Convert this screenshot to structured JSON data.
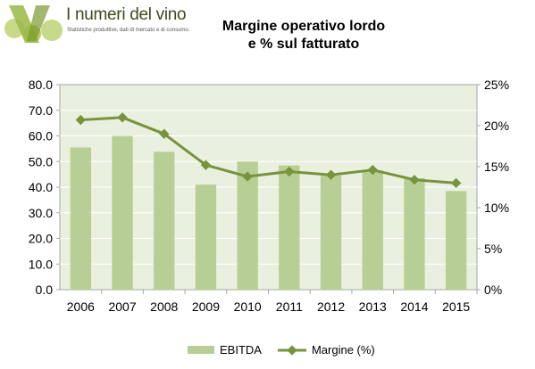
{
  "logo": {
    "title": "I numeri del vino",
    "subtitle": "Statistiche produttive, dati di mercato e di consumo."
  },
  "colors": {
    "plot_bg": "#eaf0df",
    "bar": "#b7cf94",
    "line": "#77933c",
    "grid": "#a6a6a6"
  },
  "chart_data": {
    "type": "bar",
    "title_line1": "Margine operativo lordo",
    "title_line2": "e % sul fatturato",
    "categories": [
      "2006",
      "2007",
      "2008",
      "2009",
      "2010",
      "2011",
      "2012",
      "2013",
      "2014",
      "2015"
    ],
    "series": [
      {
        "name": "EBITDA",
        "type": "bar",
        "axis": "left",
        "values": [
          55.5,
          60.0,
          53.8,
          41.0,
          50.0,
          48.5,
          44.5,
          46.5,
          43.5,
          38.5
        ]
      },
      {
        "name": "Margine (%)",
        "type": "line",
        "axis": "right",
        "values": [
          20.7,
          21.0,
          19.0,
          15.2,
          13.8,
          14.4,
          14.0,
          14.6,
          13.4,
          13.0
        ]
      }
    ],
    "y_left": {
      "min": 0,
      "max": 80,
      "step": 10,
      "ticks": [
        "0.0",
        "10.0",
        "20.0",
        "30.0",
        "40.0",
        "50.0",
        "60.0",
        "70.0",
        "80.0"
      ]
    },
    "y_right": {
      "min": 0,
      "max": 25,
      "step": 5,
      "ticks": [
        "0%",
        "5%",
        "10%",
        "15%",
        "20%",
        "25%"
      ]
    },
    "grid": true,
    "legend_position": "bottom"
  }
}
